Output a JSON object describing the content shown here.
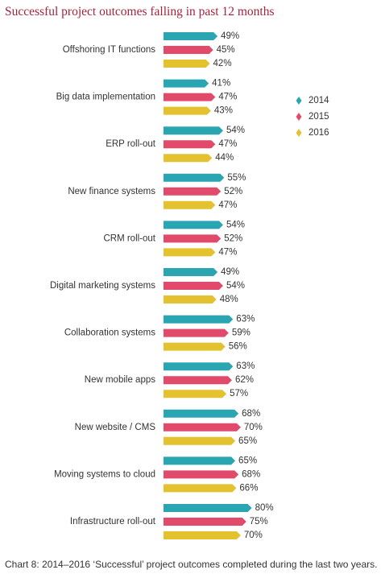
{
  "chart_data": {
    "type": "bar",
    "title": "Successful project outcomes falling in past 12 months",
    "caption": "Chart 8: 2014–2016 ‘Successful’ project outcomes completed during the last two years.",
    "orientation": "horizontal",
    "legend": "right",
    "categories": [
      "Offshoring IT functions",
      "Big data implementation",
      "ERP roll-out",
      "New finance systems",
      "CRM roll-out",
      "Digital marketing systems",
      "Collaboration systems",
      "New mobile apps",
      "New website / CMS",
      "Moving systems to cloud",
      "Infrastructure roll-out"
    ],
    "series": [
      {
        "name": "2014",
        "color": "#2aa5b2",
        "values": [
          49,
          41,
          54,
          55,
          54,
          49,
          63,
          63,
          68,
          65,
          80
        ],
        "value_labels": [
          "49%",
          "41%",
          "54%",
          "55%",
          "54%",
          "49%",
          "63%",
          "63%",
          "68%",
          "65%",
          "80%"
        ]
      },
      {
        "name": "2015",
        "color": "#e14a6b",
        "values": [
          45,
          47,
          47,
          52,
          52,
          54,
          59,
          62,
          70,
          68,
          75
        ],
        "value_labels": [
          "45%",
          "47%",
          "47%",
          "52%",
          "52%",
          "54%",
          "59%",
          "62%",
          "70%",
          "68%",
          "75%"
        ]
      },
      {
        "name": "2016",
        "color": "#e4c22f",
        "values": [
          42,
          43,
          44,
          47,
          47,
          48,
          56,
          57,
          65,
          66,
          70
        ],
        "value_labels": [
          "42%",
          "43%",
          "44%",
          "47%",
          "47%",
          "48%",
          "56%",
          "57%",
          "65%",
          "66%",
          "70%"
        ]
      }
    ]
  }
}
